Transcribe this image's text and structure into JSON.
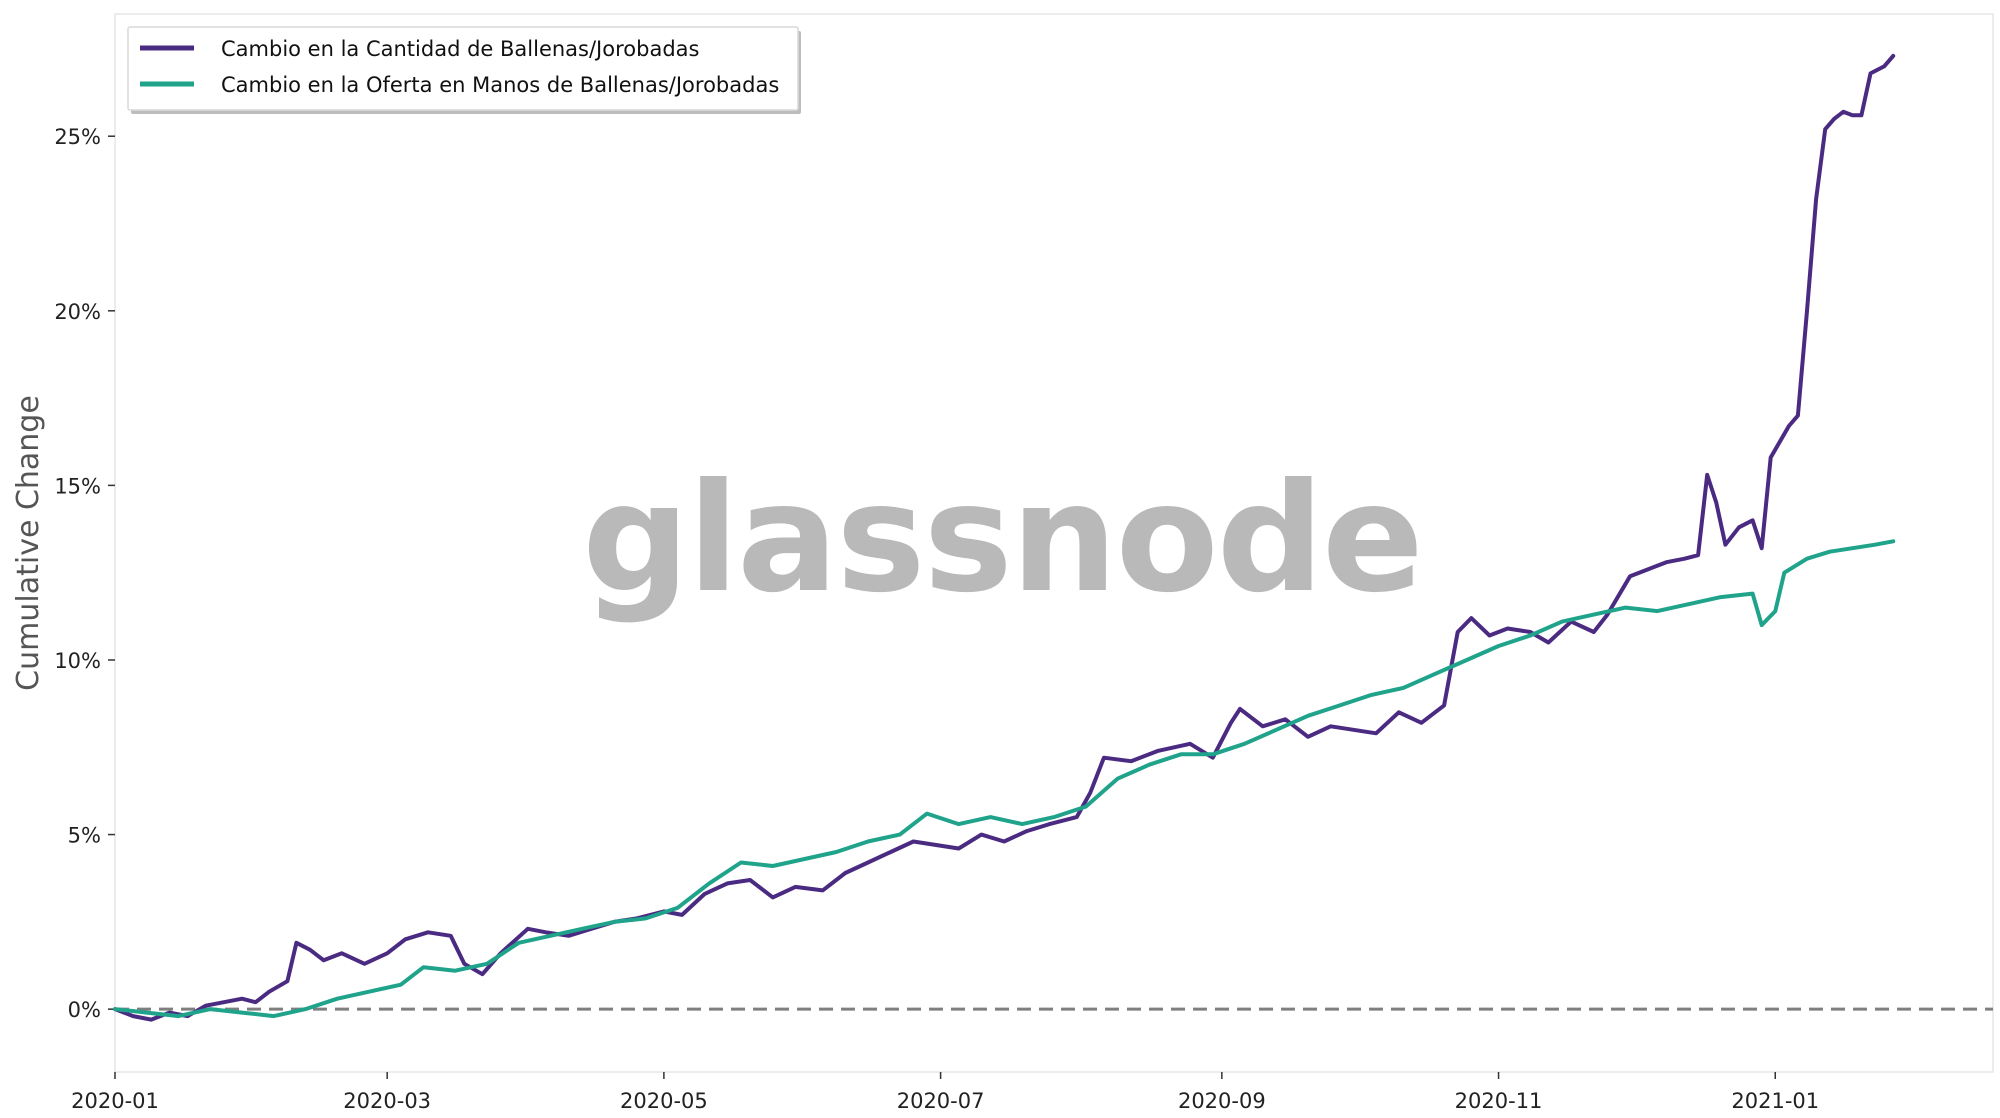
{
  "watermark": "glassnode",
  "chart_data": {
    "type": "line",
    "title": "",
    "xlabel": "",
    "ylabel": "Cumulative Change",
    "xlim": [
      "2020-01-01",
      "2021-02-18"
    ],
    "ylim": [
      -1.8,
      28.5
    ],
    "x_ticks": [
      "2020-01",
      "2020-03",
      "2020-05",
      "2020-07",
      "2020-09",
      "2020-11",
      "2021-01"
    ],
    "y_ticks": [
      0,
      5,
      10,
      15,
      20,
      25
    ],
    "y_tick_labels": [
      "0%",
      "5%",
      "10%",
      "15%",
      "20%",
      "25%"
    ],
    "grid": false,
    "legend": "upper-left",
    "baseline": {
      "y": 0,
      "style": "dashed",
      "color": "#7f7f7f"
    },
    "series": [
      {
        "name": "Cambio en la Cantidad de Ballenas/Jorobadas",
        "color": "#4b2a82",
        "points": [
          [
            "2020-01-01",
            0.0
          ],
          [
            "2020-01-05",
            -0.2
          ],
          [
            "2020-01-09",
            -0.3
          ],
          [
            "2020-01-13",
            -0.1
          ],
          [
            "2020-01-17",
            -0.2
          ],
          [
            "2020-01-21",
            0.1
          ],
          [
            "2020-01-25",
            0.2
          ],
          [
            "2020-01-29",
            0.3
          ],
          [
            "2020-02-01",
            0.2
          ],
          [
            "2020-02-04",
            0.5
          ],
          [
            "2020-02-08",
            0.8
          ],
          [
            "2020-02-10",
            1.9
          ],
          [
            "2020-02-13",
            1.7
          ],
          [
            "2020-02-16",
            1.4
          ],
          [
            "2020-02-20",
            1.6
          ],
          [
            "2020-02-25",
            1.3
          ],
          [
            "2020-03-01",
            1.6
          ],
          [
            "2020-03-05",
            2.0
          ],
          [
            "2020-03-10",
            2.2
          ],
          [
            "2020-03-15",
            2.1
          ],
          [
            "2020-03-18",
            1.3
          ],
          [
            "2020-03-22",
            1.0
          ],
          [
            "2020-03-26",
            1.6
          ],
          [
            "2020-04-01",
            2.3
          ],
          [
            "2020-04-05",
            2.2
          ],
          [
            "2020-04-10",
            2.1
          ],
          [
            "2020-04-15",
            2.3
          ],
          [
            "2020-04-20",
            2.5
          ],
          [
            "2020-04-25",
            2.6
          ],
          [
            "2020-05-01",
            2.8
          ],
          [
            "2020-05-05",
            2.7
          ],
          [
            "2020-05-10",
            3.3
          ],
          [
            "2020-05-15",
            3.6
          ],
          [
            "2020-05-20",
            3.7
          ],
          [
            "2020-05-25",
            3.2
          ],
          [
            "2020-05-30",
            3.5
          ],
          [
            "2020-06-05",
            3.4
          ],
          [
            "2020-06-10",
            3.9
          ],
          [
            "2020-06-15",
            4.2
          ],
          [
            "2020-06-20",
            4.5
          ],
          [
            "2020-06-25",
            4.8
          ],
          [
            "2020-06-30",
            4.7
          ],
          [
            "2020-07-05",
            4.6
          ],
          [
            "2020-07-10",
            5.0
          ],
          [
            "2020-07-15",
            4.8
          ],
          [
            "2020-07-20",
            5.1
          ],
          [
            "2020-07-25",
            5.3
          ],
          [
            "2020-07-31",
            5.5
          ],
          [
            "2020-08-03",
            6.2
          ],
          [
            "2020-08-06",
            7.2
          ],
          [
            "2020-08-12",
            7.1
          ],
          [
            "2020-08-18",
            7.4
          ],
          [
            "2020-08-25",
            7.6
          ],
          [
            "2020-08-30",
            7.2
          ],
          [
            "2020-09-03",
            8.2
          ],
          [
            "2020-09-05",
            8.6
          ],
          [
            "2020-09-10",
            8.1
          ],
          [
            "2020-09-15",
            8.3
          ],
          [
            "2020-09-20",
            7.8
          ],
          [
            "2020-09-25",
            8.1
          ],
          [
            "2020-09-30",
            8.0
          ],
          [
            "2020-10-05",
            7.9
          ],
          [
            "2020-10-10",
            8.5
          ],
          [
            "2020-10-15",
            8.2
          ],
          [
            "2020-10-20",
            8.7
          ],
          [
            "2020-10-23",
            10.8
          ],
          [
            "2020-10-26",
            11.2
          ],
          [
            "2020-10-30",
            10.7
          ],
          [
            "2020-11-03",
            10.9
          ],
          [
            "2020-11-08",
            10.8
          ],
          [
            "2020-11-12",
            10.5
          ],
          [
            "2020-11-17",
            11.1
          ],
          [
            "2020-11-22",
            10.8
          ],
          [
            "2020-11-25",
            11.3
          ],
          [
            "2020-11-30",
            12.4
          ],
          [
            "2020-12-04",
            12.6
          ],
          [
            "2020-12-08",
            12.8
          ],
          [
            "2020-12-12",
            12.9
          ],
          [
            "2020-12-15",
            13.0
          ],
          [
            "2020-12-17",
            15.3
          ],
          [
            "2020-12-19",
            14.5
          ],
          [
            "2020-12-21",
            13.3
          ],
          [
            "2020-12-24",
            13.8
          ],
          [
            "2020-12-27",
            14.0
          ],
          [
            "2020-12-29",
            13.2
          ],
          [
            "2020-12-31",
            15.8
          ],
          [
            "2021-01-04",
            16.7
          ],
          [
            "2021-01-06",
            17.0
          ],
          [
            "2021-01-08",
            20.0
          ],
          [
            "2021-01-10",
            23.2
          ],
          [
            "2021-01-12",
            25.2
          ],
          [
            "2021-01-14",
            25.5
          ],
          [
            "2021-01-16",
            25.7
          ],
          [
            "2021-01-18",
            25.6
          ],
          [
            "2021-01-20",
            25.6
          ],
          [
            "2021-01-22",
            26.8
          ],
          [
            "2021-01-25",
            27.0
          ],
          [
            "2021-01-27",
            27.3
          ]
        ]
      },
      {
        "name": "Cambio en la Oferta en Manos de Ballenas/Jorobadas",
        "color": "#20a38b",
        "points": [
          [
            "2020-01-01",
            0.0
          ],
          [
            "2020-01-08",
            -0.1
          ],
          [
            "2020-01-15",
            -0.2
          ],
          [
            "2020-01-22",
            0.0
          ],
          [
            "2020-01-29",
            -0.1
          ],
          [
            "2020-02-05",
            -0.2
          ],
          [
            "2020-02-12",
            0.0
          ],
          [
            "2020-02-19",
            0.3
          ],
          [
            "2020-02-26",
            0.5
          ],
          [
            "2020-03-04",
            0.7
          ],
          [
            "2020-03-09",
            1.2
          ],
          [
            "2020-03-16",
            1.1
          ],
          [
            "2020-03-23",
            1.3
          ],
          [
            "2020-03-30",
            1.9
          ],
          [
            "2020-04-06",
            2.1
          ],
          [
            "2020-04-13",
            2.3
          ],
          [
            "2020-04-20",
            2.5
          ],
          [
            "2020-04-27",
            2.6
          ],
          [
            "2020-05-04",
            2.9
          ],
          [
            "2020-05-11",
            3.6
          ],
          [
            "2020-05-18",
            4.2
          ],
          [
            "2020-05-25",
            4.1
          ],
          [
            "2020-06-01",
            4.3
          ],
          [
            "2020-06-08",
            4.5
          ],
          [
            "2020-06-15",
            4.8
          ],
          [
            "2020-06-22",
            5.0
          ],
          [
            "2020-06-28",
            5.6
          ],
          [
            "2020-07-05",
            5.3
          ],
          [
            "2020-07-12",
            5.5
          ],
          [
            "2020-07-19",
            5.3
          ],
          [
            "2020-07-26",
            5.5
          ],
          [
            "2020-08-02",
            5.8
          ],
          [
            "2020-08-09",
            6.6
          ],
          [
            "2020-08-16",
            7.0
          ],
          [
            "2020-08-23",
            7.3
          ],
          [
            "2020-08-30",
            7.3
          ],
          [
            "2020-09-06",
            7.6
          ],
          [
            "2020-09-13",
            8.0
          ],
          [
            "2020-09-20",
            8.4
          ],
          [
            "2020-09-27",
            8.7
          ],
          [
            "2020-10-04",
            9.0
          ],
          [
            "2020-10-11",
            9.2
          ],
          [
            "2020-10-18",
            9.6
          ],
          [
            "2020-10-25",
            10.0
          ],
          [
            "2020-11-01",
            10.4
          ],
          [
            "2020-11-08",
            10.7
          ],
          [
            "2020-11-15",
            11.1
          ],
          [
            "2020-11-22",
            11.3
          ],
          [
            "2020-11-29",
            11.5
          ],
          [
            "2020-12-06",
            11.4
          ],
          [
            "2020-12-13",
            11.6
          ],
          [
            "2020-12-20",
            11.8
          ],
          [
            "2020-12-27",
            11.9
          ],
          [
            "2020-12-29",
            11.0
          ],
          [
            "2021-01-01",
            11.4
          ],
          [
            "2021-01-03",
            12.5
          ],
          [
            "2021-01-08",
            12.9
          ],
          [
            "2021-01-13",
            13.1
          ],
          [
            "2021-01-18",
            13.2
          ],
          [
            "2021-01-23",
            13.3
          ],
          [
            "2021-01-27",
            13.4
          ]
        ]
      }
    ]
  }
}
